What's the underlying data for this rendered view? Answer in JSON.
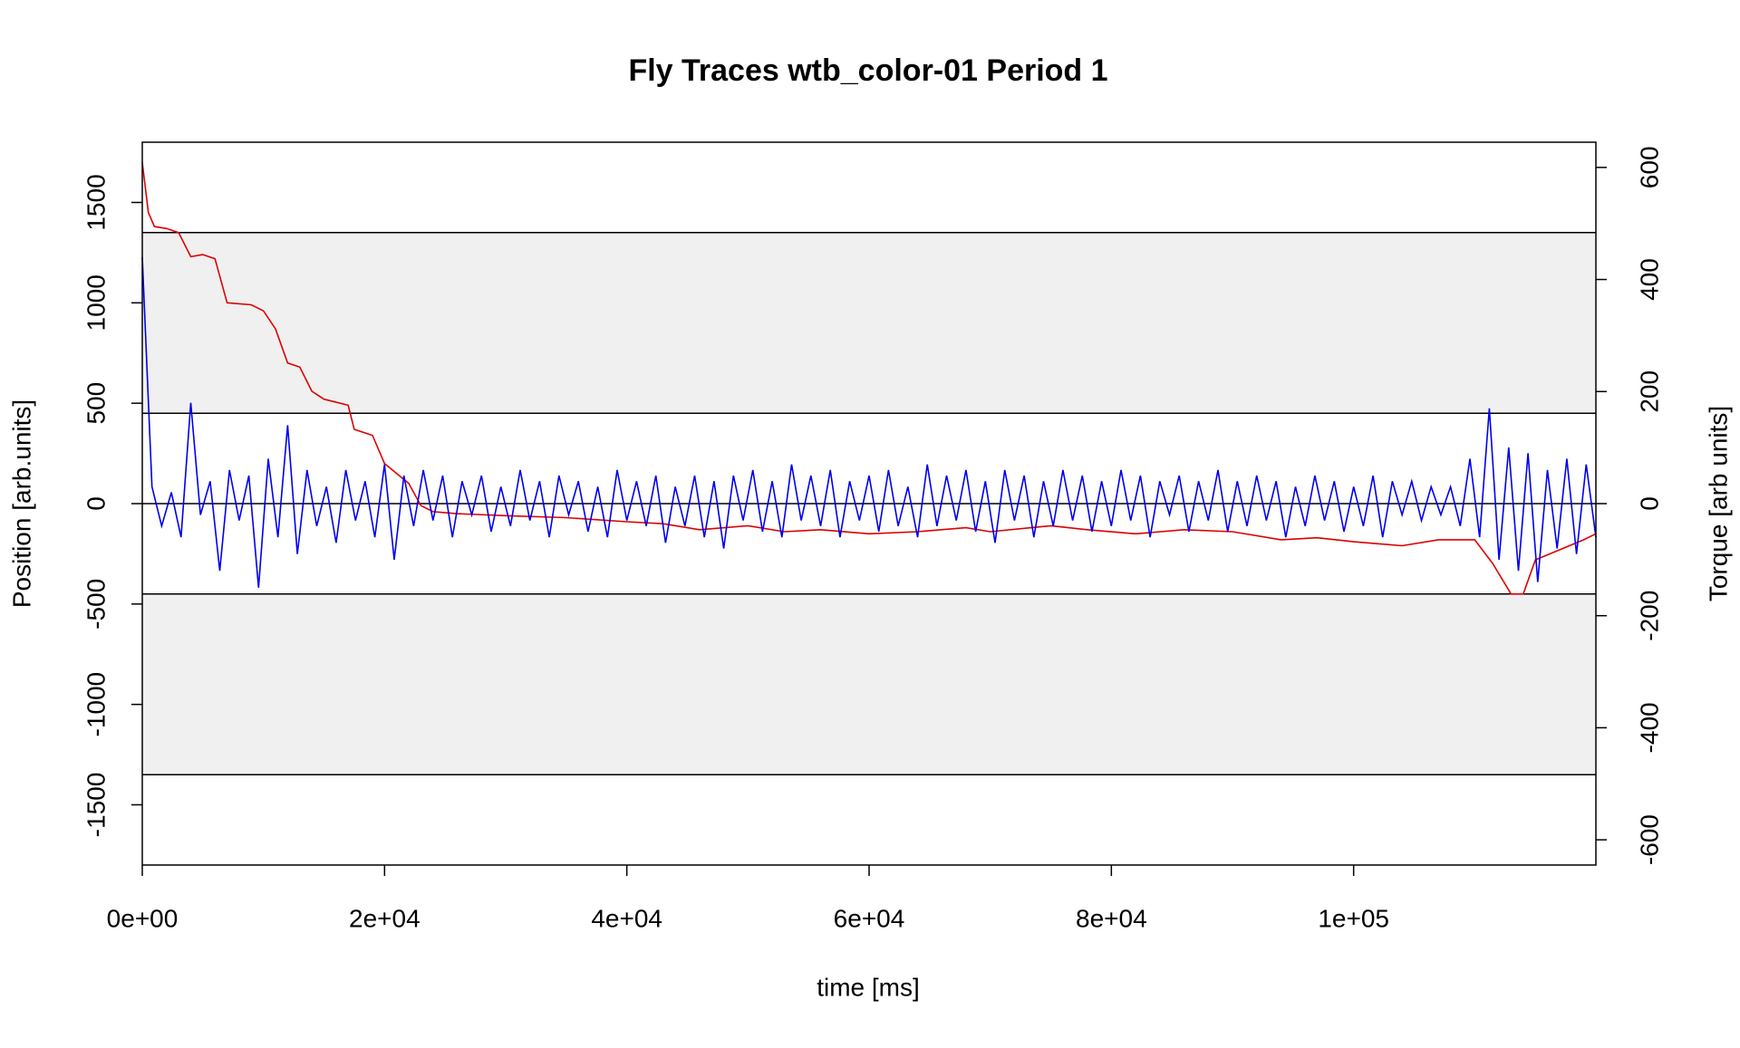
{
  "chart_data": {
    "type": "line",
    "title": "Fly Traces wtb_color-01 Period 1",
    "x_label": "time [ms]",
    "y_label": "Position [arb.units]",
    "y2_label": "Torque [arb units]",
    "xlim": [
      0,
      120000
    ],
    "ylim": [
      -1800,
      1800
    ],
    "y2lim": [
      -645,
      645
    ],
    "xticks": [
      {
        "value": 0,
        "label": "0e+00"
      },
      {
        "value": 20000,
        "label": "2e+04"
      },
      {
        "value": 40000,
        "label": "4e+04"
      },
      {
        "value": 60000,
        "label": "6e+04"
      },
      {
        "value": 80000,
        "label": "8e+04"
      },
      {
        "value": 100000,
        "label": "1e+05"
      }
    ],
    "yticks": [
      -1500,
      -1000,
      -500,
      0,
      500,
      1000,
      1500
    ],
    "y2ticks": [
      -600,
      -400,
      -200,
      0,
      200,
      400,
      600
    ],
    "bands": [
      [
        450,
        1350
      ],
      [
        -1350,
        -450
      ]
    ],
    "band_color": "#f0f0f0",
    "hlines": [
      1350,
      450,
      0,
      -450,
      -1350
    ],
    "series": [
      {
        "color": "#dd0000",
        "axis": "y",
        "x": [
          0,
          500,
          1000,
          2000,
          3000,
          4000,
          5000,
          6000,
          7000,
          9000,
          10000,
          11000,
          12000,
          13000,
          14000,
          15000,
          17000,
          17500,
          19000,
          20000,
          21000,
          22000,
          23000,
          24000,
          26000,
          30000,
          35000,
          40000,
          43000,
          46000,
          50000,
          53000,
          56000,
          60000,
          64000,
          68000,
          70000,
          75000,
          78000,
          82000,
          86000,
          90000,
          94000,
          97000,
          100000,
          104000,
          107000,
          110000,
          111500,
          113000,
          114000,
          115000,
          117000,
          119000,
          120000
        ],
        "values": [
          1700,
          1450,
          1380,
          1370,
          1350,
          1230,
          1240,
          1220,
          1000,
          990,
          960,
          870,
          700,
          680,
          560,
          520,
          490,
          370,
          340,
          200,
          150,
          100,
          -10,
          -40,
          -50,
          -60,
          -70,
          -90,
          -100,
          -130,
          -110,
          -140,
          -130,
          -150,
          -140,
          -120,
          -140,
          -110,
          -130,
          -150,
          -130,
          -140,
          -180,
          -170,
          -190,
          -210,
          -180,
          -180,
          -300,
          -450,
          -450,
          -280,
          -230,
          -180,
          -150
        ]
      },
      {
        "color": "#0000ee",
        "axis": "y2",
        "x": [
          0,
          800,
          1600,
          2400,
          3200,
          4000,
          4800,
          5600,
          6400,
          7200,
          8000,
          8800,
          9600,
          10400,
          11200,
          12000,
          12800,
          13600,
          14400,
          15200,
          16000,
          16800,
          17600,
          18400,
          19200,
          20000,
          20800,
          21600,
          22400,
          23200,
          24000,
          24800,
          25600,
          26400,
          27200,
          28000,
          28800,
          29600,
          30400,
          31200,
          32000,
          32800,
          33600,
          34400,
          35200,
          36000,
          36800,
          37600,
          38400,
          39200,
          40000,
          40800,
          41600,
          42400,
          43200,
          44000,
          44800,
          45600,
          46400,
          47200,
          48000,
          48800,
          49600,
          50400,
          51200,
          52000,
          52800,
          53600,
          54400,
          55200,
          56000,
          56800,
          57600,
          58400,
          59200,
          60000,
          60800,
          61600,
          62400,
          63200,
          64000,
          64800,
          65600,
          66400,
          67200,
          68000,
          68800,
          69600,
          70400,
          71200,
          72000,
          72800,
          73600,
          74400,
          75200,
          76000,
          76800,
          77600,
          78400,
          79200,
          80000,
          80800,
          81600,
          82400,
          83200,
          84000,
          84800,
          85600,
          86400,
          87200,
          88000,
          88800,
          89600,
          90400,
          91200,
          92000,
          92800,
          93600,
          94400,
          95200,
          96000,
          96800,
          97600,
          98400,
          99200,
          100000,
          100800,
          101600,
          102400,
          103200,
          104000,
          104800,
          105600,
          106400,
          107200,
          108000,
          108800,
          109600,
          110400,
          111200,
          112000,
          112800,
          113600,
          114400,
          115200,
          116000,
          116800,
          117600,
          118400,
          119200,
          120000
        ],
        "values": [
          440,
          30,
          -40,
          20,
          -60,
          180,
          -20,
          40,
          -120,
          60,
          -30,
          50,
          -150,
          80,
          -60,
          140,
          -90,
          60,
          -40,
          30,
          -70,
          60,
          -30,
          40,
          -60,
          70,
          -100,
          50,
          -40,
          60,
          -30,
          50,
          -60,
          40,
          -20,
          50,
          -50,
          30,
          -40,
          60,
          -30,
          40,
          -60,
          50,
          -20,
          40,
          -50,
          30,
          -60,
          60,
          -30,
          40,
          -40,
          50,
          -70,
          30,
          -40,
          50,
          -60,
          40,
          -80,
          50,
          -30,
          60,
          -50,
          40,
          -60,
          70,
          -30,
          50,
          -40,
          60,
          -60,
          40,
          -30,
          50,
          -50,
          60,
          -40,
          30,
          -60,
          70,
          -40,
          50,
          -30,
          60,
          -50,
          40,
          -70,
          60,
          -30,
          50,
          -60,
          40,
          -40,
          60,
          -30,
          50,
          -50,
          40,
          -40,
          60,
          -30,
          50,
          -60,
          40,
          -20,
          50,
          -50,
          40,
          -30,
          60,
          -50,
          40,
          -40,
          50,
          -30,
          40,
          -60,
          30,
          -40,
          50,
          -30,
          40,
          -50,
          30,
          -40,
          50,
          -60,
          40,
          -20,
          40,
          -30,
          30,
          -20,
          30,
          -40,
          80,
          -60,
          170,
          -100,
          100,
          -120,
          90,
          -140,
          60,
          -80,
          80,
          -90,
          70,
          -60
        ]
      }
    ]
  }
}
